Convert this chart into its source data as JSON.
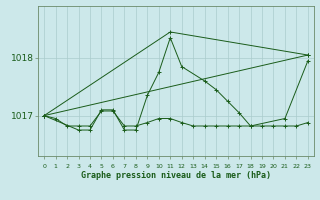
{
  "title": "Graphe pression niveau de la mer (hPa)",
  "background_color": "#cce8ea",
  "grid_color": "#aacccc",
  "line_color": "#1a5c1a",
  "x_labels": [
    "0",
    "1",
    "2",
    "3",
    "4",
    "5",
    "6",
    "7",
    "8",
    "9",
    "10",
    "11",
    "12",
    "13",
    "14",
    "15",
    "16",
    "17",
    "18",
    "19",
    "20",
    "21",
    "22",
    "23"
  ],
  "y_ticks": [
    1017,
    1018
  ],
  "ylim": [
    1016.3,
    1018.9
  ],
  "xlim": [
    -0.5,
    23.5
  ],
  "series1_x": [
    0,
    1,
    2,
    3,
    4,
    5,
    6,
    7,
    8,
    9,
    10,
    11,
    12,
    13,
    14,
    15,
    16,
    17,
    18,
    19,
    20,
    21,
    22,
    23
  ],
  "series1_y": [
    1017.0,
    1016.95,
    1016.82,
    1016.82,
    1016.82,
    1017.08,
    1017.08,
    1016.82,
    1016.82,
    1016.88,
    1016.95,
    1016.95,
    1016.88,
    1016.82,
    1016.82,
    1016.82,
    1016.82,
    1016.82,
    1016.82,
    1016.82,
    1016.82,
    1016.82,
    1016.82,
    1016.88
  ],
  "series2_x": [
    0,
    3,
    4,
    5,
    6,
    7,
    8,
    9,
    10,
    11,
    12,
    14,
    15,
    16,
    17,
    18,
    21,
    23
  ],
  "series2_y": [
    1017.0,
    1016.75,
    1016.75,
    1017.1,
    1017.1,
    1016.75,
    1016.75,
    1017.35,
    1017.75,
    1018.35,
    1017.85,
    1017.6,
    1017.45,
    1017.25,
    1017.05,
    1016.82,
    1016.95,
    1017.95
  ],
  "series3_x": [
    0,
    23
  ],
  "series3_y": [
    1017.0,
    1018.05
  ],
  "series4_x": [
    0,
    11,
    23
  ],
  "series4_y": [
    1017.0,
    1018.45,
    1018.05
  ]
}
